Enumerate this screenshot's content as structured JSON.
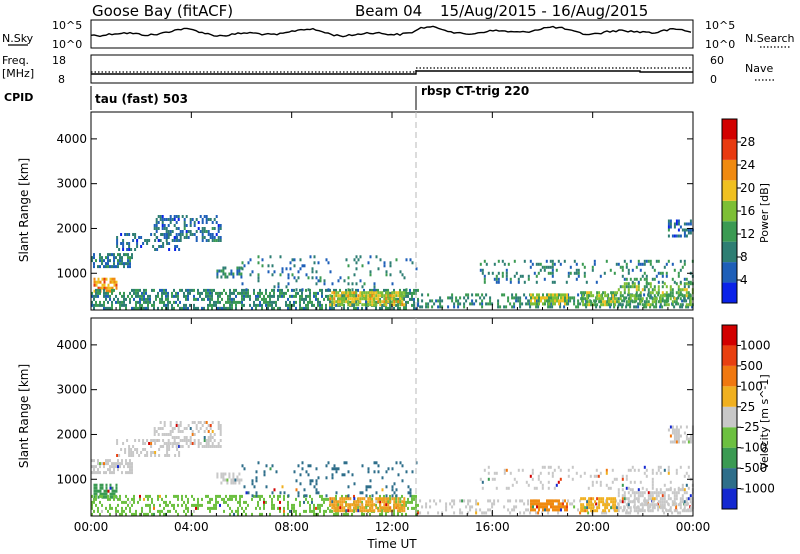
{
  "header": {
    "station": "Goose Bay (fitACF)",
    "beam": "Beam 04",
    "dates": "15/Aug/2015 - 16/Aug/2015"
  },
  "top_panels": {
    "nsky_label": "N.Sky",
    "nsky_ticks": [
      "10^5",
      "10^0"
    ],
    "nsearch_label": "N.Search",
    "nsearch_ticks": [
      "10^5",
      "10^0"
    ],
    "freq_label_line1": "Freq.",
    "freq_label_line2": "[MHz]",
    "freq_ticks": [
      "18",
      "8"
    ],
    "nave_label": "Nave",
    "nave_ticks": [
      "60",
      "0"
    ],
    "cpid_label": "CPID",
    "cpid_segments": [
      {
        "name": "tau (fast) 503",
        "start_hour": 0
      },
      {
        "name": "rbsp CT-trig 220",
        "start_hour": 13
      }
    ]
  },
  "chart_data": [
    {
      "type": "heatmap",
      "title": "",
      "xlabel": "",
      "ylabel": "Slant Range [km]",
      "x_ticks": [
        "00:00",
        "04:00",
        "08:00",
        "12:00",
        "16:00",
        "20:00",
        "00:00"
      ],
      "x_tick_hours": [
        0,
        4,
        8,
        12,
        16,
        20,
        24
      ],
      "xlim_hours": [
        0,
        24
      ],
      "y_ticks": [
        1000,
        2000,
        3000,
        4000
      ],
      "ylim": [
        180,
        4600
      ],
      "colorbar": {
        "label": "Power [dB]",
        "ticks": [
          "4",
          "8",
          "12",
          "16",
          "20",
          "24",
          "28"
        ],
        "tick_values": [
          4,
          8,
          12,
          16,
          20,
          24,
          28
        ],
        "range": [
          0,
          32
        ],
        "colors": [
          "#0a22e8",
          "#1e5fb8",
          "#2e7e73",
          "#3a9a52",
          "#7dbf35",
          "#f0c020",
          "#f08a10",
          "#e83a10",
          "#d20000"
        ]
      },
      "scatter_regions": [
        {
          "t": [
            0.1,
            1.0
          ],
          "r": [
            620,
            900
          ],
          "v": 22,
          "d": 0.75
        },
        {
          "t": [
            0.0,
            1.6
          ],
          "r": [
            1150,
            1450
          ],
          "v": 8,
          "d": 0.6
        },
        {
          "t": [
            1.0,
            3.5
          ],
          "r": [
            1500,
            1900
          ],
          "v": 6,
          "d": 0.35
        },
        {
          "t": [
            2.5,
            5.2
          ],
          "r": [
            1750,
            2300
          ],
          "v": 7,
          "d": 0.45
        },
        {
          "t": [
            5.0,
            6.0
          ],
          "r": [
            900,
            1150
          ],
          "v": 9,
          "d": 0.5
        },
        {
          "t": [
            0.0,
            13.0
          ],
          "r": [
            200,
            650
          ],
          "v": 10,
          "d": 0.55
        },
        {
          "t": [
            9.5,
            12.5
          ],
          "r": [
            300,
            600
          ],
          "v": 18,
          "d": 0.8
        },
        {
          "t": [
            13.0,
            24.0
          ],
          "r": [
            220,
            550
          ],
          "v": 10,
          "d": 0.35
        },
        {
          "t": [
            17.5,
            19.0
          ],
          "r": [
            300,
            550
          ],
          "v": 17,
          "d": 0.75
        },
        {
          "t": [
            19.5,
            21.0
          ],
          "r": [
            300,
            600
          ],
          "v": 15,
          "d": 0.7
        },
        {
          "t": [
            21.0,
            24.0
          ],
          "r": [
            300,
            800
          ],
          "v": 14,
          "d": 0.55
        },
        {
          "t": [
            23.0,
            24.0
          ],
          "r": [
            1800,
            2200
          ],
          "v": 7,
          "d": 0.5
        },
        {
          "t": [
            15.5,
            24.0
          ],
          "r": [
            800,
            1300
          ],
          "v": 9,
          "d": 0.2
        },
        {
          "t": [
            6.0,
            13.0
          ],
          "r": [
            650,
            1400
          ],
          "v": 8,
          "d": 0.12
        }
      ]
    },
    {
      "type": "heatmap",
      "title": "",
      "xlabel": "Time UT",
      "ylabel": "Slant Range [km]",
      "x_ticks": [
        "00:00",
        "04:00",
        "08:00",
        "12:00",
        "16:00",
        "20:00",
        "00:00"
      ],
      "x_tick_hours": [
        0,
        4,
        8,
        12,
        16,
        20,
        24
      ],
      "xlim_hours": [
        0,
        24
      ],
      "y_ticks": [
        1000,
        2000,
        3000,
        4000
      ],
      "ylim": [
        180,
        4600
      ],
      "colorbar": {
        "label": "Velocity [m s^-1]",
        "ticks": [
          "1000",
          "500",
          "100",
          "25",
          "-25",
          "-100",
          "-500",
          "-1000"
        ],
        "colors": [
          "#1428d0",
          "#2e6e8a",
          "#3a9a52",
          "#6cc040",
          "#c8c8c8",
          "#f0b020",
          "#f07810",
          "#e84010",
          "#d20000"
        ]
      },
      "scatter_regions": [
        {
          "t": [
            0.1,
            1.0
          ],
          "r": [
            620,
            900
          ],
          "c": "#3a9a52",
          "d": 0.75
        },
        {
          "t": [
            0.0,
            1.6
          ],
          "r": [
            1150,
            1450
          ],
          "c": "#c8c8c8",
          "d": 0.6
        },
        {
          "t": [
            1.0,
            3.5
          ],
          "r": [
            1500,
            1900
          ],
          "c": "#c8c8c8",
          "d": 0.35
        },
        {
          "t": [
            2.5,
            5.2
          ],
          "r": [
            1750,
            2300
          ],
          "c": "#c8c8c8",
          "d": 0.45
        },
        {
          "t": [
            5.0,
            6.0
          ],
          "r": [
            900,
            1150
          ],
          "c": "#c8c8c8",
          "d": 0.5
        },
        {
          "t": [
            0.0,
            13.0
          ],
          "r": [
            200,
            650
          ],
          "c": "#6cc040",
          "d": 0.35
        },
        {
          "t": [
            9.5,
            12.5
          ],
          "r": [
            300,
            600
          ],
          "c": "#f0a020",
          "d": 0.8
        },
        {
          "t": [
            13.0,
            24.0
          ],
          "r": [
            220,
            550
          ],
          "c": "#c8c8c8",
          "d": 0.25
        },
        {
          "t": [
            17.5,
            19.0
          ],
          "r": [
            300,
            550
          ],
          "c": "#f08a10",
          "d": 0.75
        },
        {
          "t": [
            19.5,
            21.0
          ],
          "r": [
            300,
            600
          ],
          "c": "#f0b020",
          "d": 0.7
        },
        {
          "t": [
            21.0,
            24.0
          ],
          "r": [
            300,
            800
          ],
          "c": "#c8c8c8",
          "d": 0.55
        },
        {
          "t": [
            23.0,
            24.0
          ],
          "r": [
            1800,
            2200
          ],
          "c": "#c8c8c8",
          "d": 0.5
        },
        {
          "t": [
            15.5,
            24.0
          ],
          "r": [
            800,
            1300
          ],
          "c": "#c8c8c8",
          "d": 0.15
        },
        {
          "t": [
            6.0,
            13.0
          ],
          "r": [
            650,
            1400
          ],
          "c": "#2e6e8a",
          "d": 0.1
        }
      ]
    }
  ]
}
